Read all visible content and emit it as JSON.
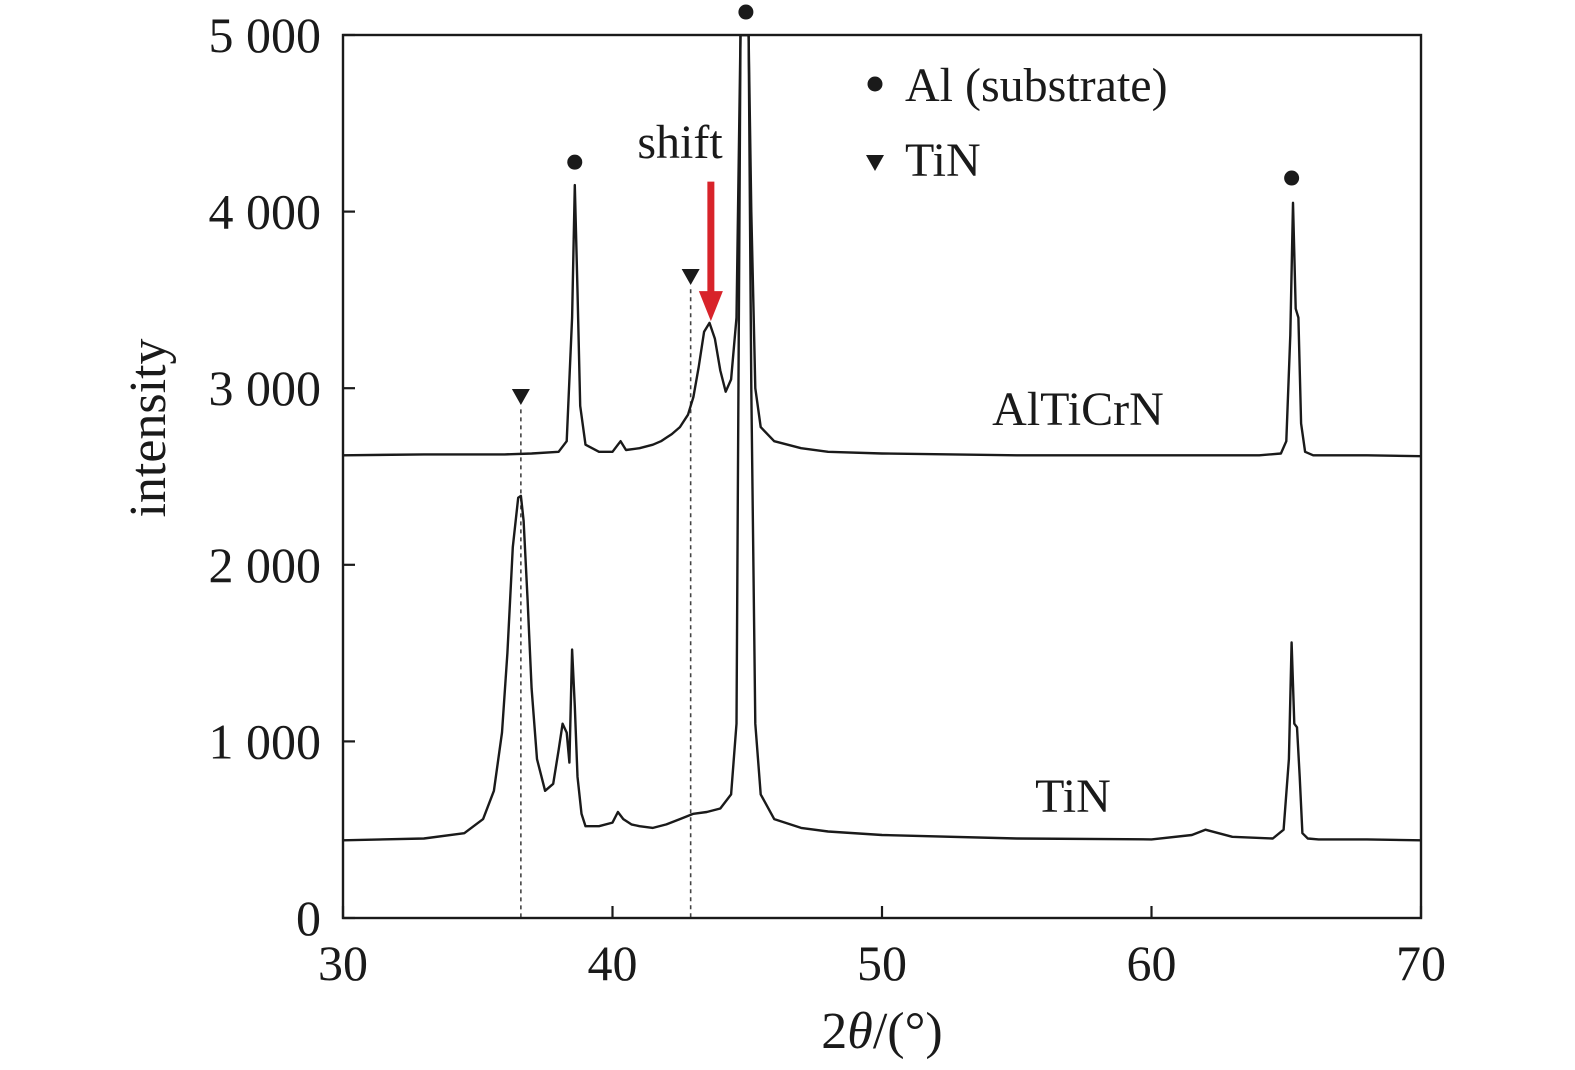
{
  "chart_data": {
    "type": "line",
    "title": "",
    "xlabel_prefix": "2",
    "xlabel_theta": "θ",
    "xlabel_suffix": "/(°)",
    "ylabel": "intensity",
    "xlim": [
      30,
      70
    ],
    "ylim": [
      0,
      5000
    ],
    "xticks": [
      30,
      40,
      50,
      60,
      70
    ],
    "xtick_labels": [
      "30",
      "40",
      "50",
      "60",
      "70"
    ],
    "yticks": [
      0,
      1000,
      2000,
      3000,
      4000,
      5000
    ],
    "ytick_labels": [
      "0",
      "1 000",
      "2 000",
      "3 000",
      "4 000",
      "5 000"
    ],
    "grid": false,
    "line_color": "#1a1a1a",
    "arrow_color": "#d8232a",
    "series": [
      {
        "name": "AlTiCrN",
        "baseline": 2620,
        "x": [
          30,
          33,
          35,
          36,
          37,
          38,
          38.3,
          38.5,
          38.6,
          38.7,
          38.8,
          39.0,
          39.5,
          40.0,
          40.2,
          40.3,
          40.5,
          41.0,
          41.5,
          41.8,
          42.0,
          42.2,
          42.5,
          42.8,
          43.0,
          43.2,
          43.4,
          43.6,
          43.8,
          44.0,
          44.2,
          44.4,
          44.6,
          44.75,
          44.85,
          44.95,
          45.05,
          45.15,
          45.3,
          45.5,
          46.0,
          47.0,
          48.0,
          50,
          55,
          60,
          64,
          64.8,
          65.0,
          65.15,
          65.25,
          65.35,
          65.45,
          65.55,
          65.7,
          66.0,
          68,
          70
        ],
        "y": [
          2620,
          2625,
          2625,
          2625,
          2630,
          2640,
          2700,
          3400,
          4150,
          3550,
          2900,
          2680,
          2640,
          2640,
          2680,
          2700,
          2650,
          2660,
          2680,
          2700,
          2720,
          2740,
          2780,
          2850,
          2950,
          3120,
          3320,
          3370,
          3280,
          3100,
          2980,
          3050,
          3400,
          5000,
          5000,
          5000,
          5000,
          4000,
          3000,
          2780,
          2700,
          2660,
          2640,
          2630,
          2620,
          2620,
          2620,
          2630,
          2700,
          3300,
          4050,
          3450,
          3400,
          2800,
          2640,
          2620,
          2620,
          2615
        ]
      },
      {
        "name": "TiN",
        "baseline": 440,
        "x": [
          30,
          33,
          34.5,
          35.2,
          35.6,
          35.9,
          36.1,
          36.3,
          36.5,
          36.6,
          36.7,
          36.85,
          37.0,
          37.2,
          37.5,
          37.8,
          38.0,
          38.15,
          38.3,
          38.4,
          38.5,
          38.6,
          38.7,
          38.85,
          39.0,
          39.5,
          40.0,
          40.2,
          40.4,
          40.7,
          41.0,
          41.5,
          42.0,
          42.5,
          43.0,
          43.5,
          44.0,
          44.4,
          44.6,
          44.75,
          44.85,
          44.95,
          45.05,
          45.15,
          45.3,
          45.5,
          46.0,
          47,
          48,
          50,
          55,
          60,
          61.5,
          62.0,
          63,
          64.5,
          64.9,
          65.1,
          65.2,
          65.3,
          65.4,
          65.5,
          65.6,
          65.8,
          66.2,
          68,
          70
        ],
        "y": [
          440,
          450,
          480,
          560,
          720,
          1050,
          1500,
          2100,
          2380,
          2390,
          2250,
          1800,
          1300,
          900,
          720,
          760,
          950,
          1100,
          1050,
          880,
          1520,
          1200,
          800,
          590,
          520,
          520,
          540,
          600,
          560,
          530,
          520,
          510,
          530,
          560,
          590,
          600,
          620,
          700,
          1100,
          5000,
          5000,
          5000,
          5000,
          3000,
          1100,
          700,
          560,
          510,
          490,
          470,
          450,
          445,
          470,
          500,
          460,
          450,
          500,
          900,
          1560,
          1100,
          1080,
          800,
          480,
          450,
          445,
          445,
          440
        ]
      }
    ],
    "labels": {
      "altcrn_label": "AlTiCrN",
      "tin_label": "TiN",
      "shift_label": "shift",
      "legend_al": "Al (substrate)",
      "legend_tin": "TiN"
    },
    "markers": {
      "circles": [
        {
          "x": 38.6,
          "y": 4280
        },
        {
          "x": 44.95,
          "y": 5130
        },
        {
          "x": 65.2,
          "y": 4190
        }
      ],
      "triangles": [
        {
          "x": 36.6,
          "y": 2950
        },
        {
          "x": 42.9,
          "y": 3630
        }
      ],
      "dashed_lines": [
        {
          "x": 36.6,
          "y_top": 2880
        },
        {
          "x": 42.9,
          "y_top": 3560
        }
      ],
      "arrow": {
        "x": 43.65,
        "y_start": 4170,
        "y_end": 3380
      }
    }
  }
}
